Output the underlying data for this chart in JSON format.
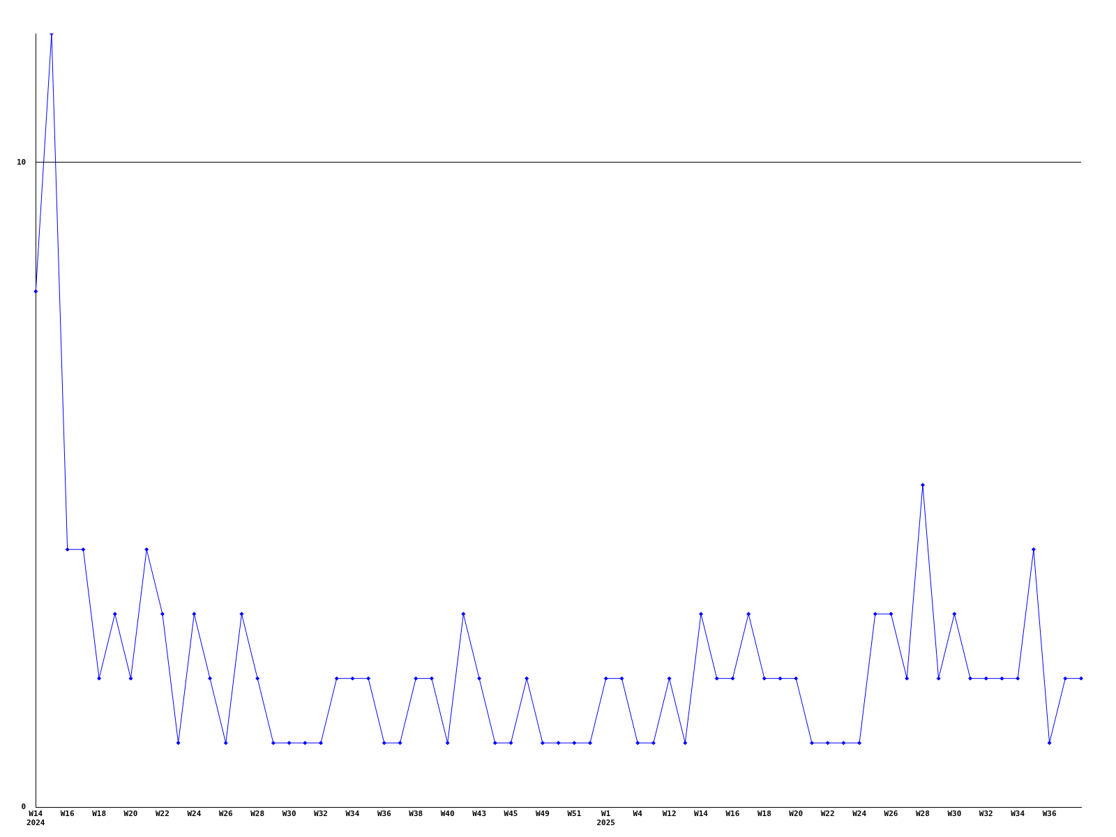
{
  "chart_data": {
    "type": "line",
    "categories": [
      "W14\n2024",
      null,
      "W16",
      null,
      "W18",
      null,
      "W20",
      null,
      "W22",
      null,
      "W24",
      null,
      "W26",
      null,
      "W28",
      null,
      "W30",
      null,
      "W32",
      null,
      "W34",
      null,
      "W36",
      null,
      "W38",
      null,
      "W40",
      null,
      "W43",
      null,
      "W45",
      null,
      "W49",
      null,
      "W51",
      null,
      "W1\n2025",
      null,
      "W4",
      null,
      "W12",
      null,
      "W14",
      null,
      "W16",
      null,
      "W18",
      null,
      "W20",
      null,
      "W22",
      null,
      "W24",
      null,
      "W26",
      null,
      "W28",
      null,
      "W30",
      null,
      "W32",
      null,
      "W34",
      null,
      "W36",
      null,
      null
    ],
    "series": [
      {
        "color": "#0000ff",
        "values": [
          8,
          12,
          4,
          4,
          2,
          3,
          2,
          4,
          3,
          1,
          3,
          2,
          1,
          3,
          2,
          1,
          1,
          1,
          1,
          2,
          2,
          2,
          1,
          1,
          2,
          2,
          1,
          3,
          2,
          1,
          1,
          2,
          1,
          1,
          1,
          1,
          2,
          2,
          1,
          1,
          2,
          1,
          3,
          2,
          2,
          3,
          2,
          2,
          2,
          1,
          1,
          1,
          1,
          3,
          3,
          2,
          5,
          2,
          3,
          2,
          2,
          2,
          2,
          4,
          1,
          2,
          2
        ]
      }
    ],
    "ylim": [
      0,
      12
    ],
    "yticks": [
      0,
      10
    ],
    "grid": "y",
    "marker": "diamond",
    "line_style": "solid",
    "legend": false
  }
}
